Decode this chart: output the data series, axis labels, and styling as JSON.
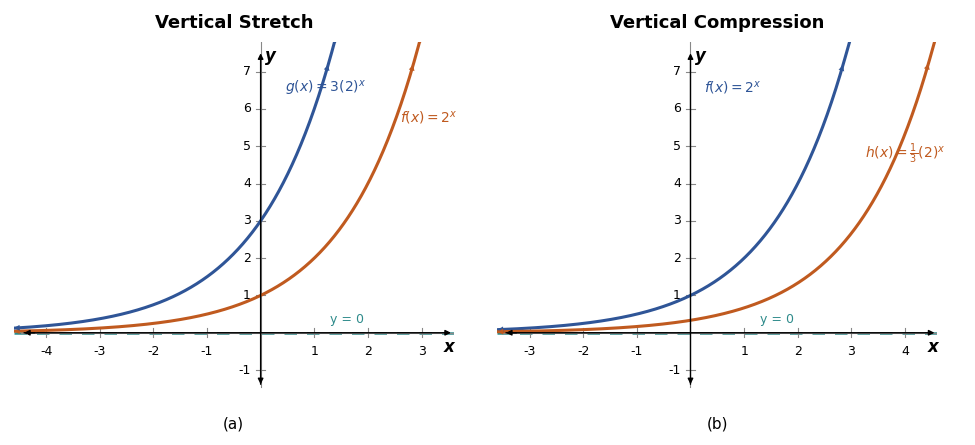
{
  "panel_a": {
    "title": "Vertical Stretch",
    "subtitle": "(a)",
    "xlim": [
      -4.6,
      3.6
    ],
    "ylim": [
      -1.5,
      7.8
    ],
    "xticks": [
      -4,
      -3,
      -2,
      -1,
      1,
      2,
      3
    ],
    "yticks": [
      -1,
      1,
      2,
      3,
      4,
      5,
      6,
      7
    ],
    "color_blue": "#2f5597",
    "color_orange": "#c05a1f",
    "color_teal": "#2e8b8b",
    "asymptote_label": "y = 0"
  },
  "panel_b": {
    "title": "Vertical Compression",
    "subtitle": "(b)",
    "xlim": [
      -3.6,
      4.6
    ],
    "ylim": [
      -1.5,
      7.8
    ],
    "xticks": [
      -3,
      -2,
      -1,
      1,
      2,
      3,
      4
    ],
    "yticks": [
      -1,
      1,
      2,
      3,
      4,
      5,
      6,
      7
    ],
    "color_blue": "#2f5597",
    "color_orange": "#c05a1f",
    "color_teal": "#2e8b8b",
    "asymptote_label": "y = 0"
  }
}
